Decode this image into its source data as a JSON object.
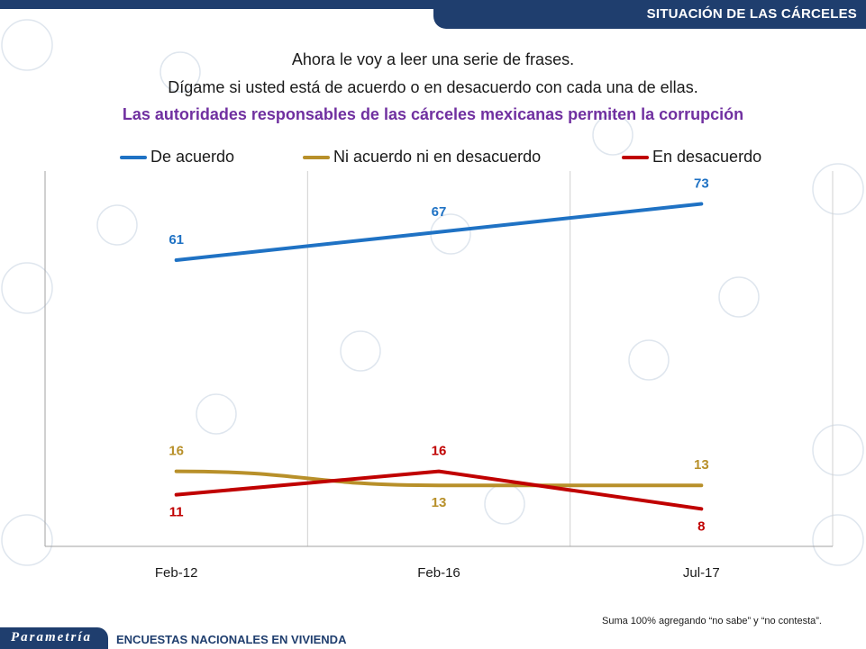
{
  "header": {
    "title": "SITUACIÓN DE LAS CÁRCELES"
  },
  "intro": {
    "line1": "Ahora le voy a leer una serie de frases.",
    "line2": "Dígame si usted está de acuerdo o en desacuerdo con cada una de ellas."
  },
  "question": "Las autoridades responsables de las cárceles mexicanas permiten la corrupción",
  "colors": {
    "de_acuerdo": "#1f72c4",
    "ni_ni": "#b8902a",
    "desacuerdo": "#c00000",
    "brand": "#1f3e6e"
  },
  "chart_data": {
    "type": "line",
    "categories": [
      "Feb-12",
      "Feb-16",
      "Jul-17"
    ],
    "series": [
      {
        "name": "De acuerdo",
        "values": [
          61,
          67,
          73
        ]
      },
      {
        "name": "Ni acuerdo ni en desacuerdo",
        "values": [
          16,
          13,
          13
        ]
      },
      {
        "name": "En desacuerdo",
        "values": [
          11,
          16,
          8
        ]
      }
    ],
    "ylim": [
      0,
      80
    ],
    "grid": "vertical",
    "legend": "top"
  },
  "footer": {
    "brand": "Parametría",
    "text": "ENCUESTAS NACIONALES EN VIVIENDA",
    "note": "Suma 100% agregando “no sabe” y “no contesta”."
  }
}
